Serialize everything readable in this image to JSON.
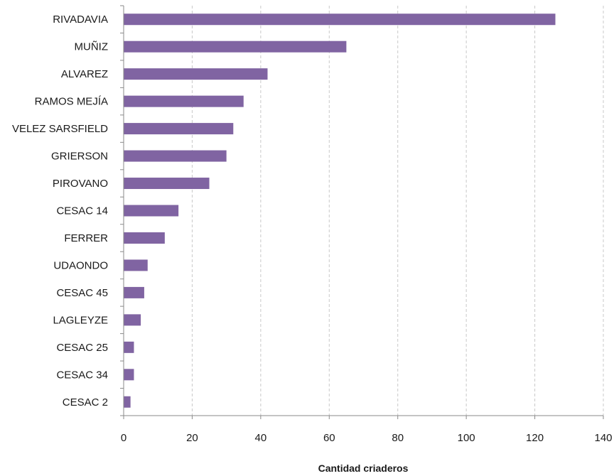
{
  "chart_data": {
    "type": "bar",
    "orientation": "horizontal",
    "categories": [
      "RIVADAVIA",
      "MUÑIZ",
      "ALVAREZ",
      "RAMOS MEJÍA",
      "VELEZ SARSFIELD",
      "GRIERSON",
      "PIROVANO",
      "CESAC 14",
      "FERRER",
      "UDAONDO",
      "CESAC 45",
      "LAGLEYZE",
      "CESAC 25",
      "CESAC 34",
      "CESAC 2"
    ],
    "values": [
      126,
      65,
      42,
      35,
      32,
      30,
      25,
      16,
      12,
      7,
      6,
      5,
      3,
      3,
      2
    ],
    "xlabel": "Cantidad criaderos",
    "xlim": [
      0,
      140
    ],
    "xticks": [
      0,
      20,
      40,
      60,
      80,
      100,
      120,
      140
    ],
    "grid": "vertical dashed",
    "bar_color": "#8064a2"
  }
}
